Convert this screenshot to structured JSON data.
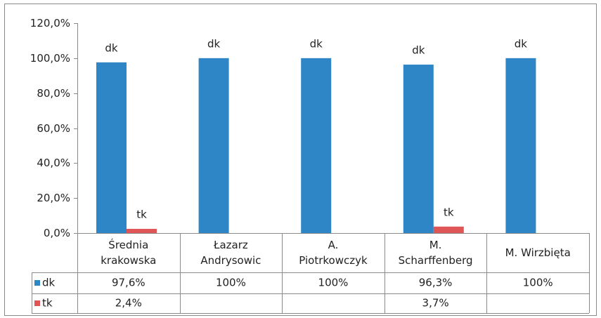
{
  "chart_data": {
    "type": "bar",
    "categories": [
      "Średnia\nkrakowska",
      "Łazarz\nAndrysowic",
      "A.\nPiotrkowczyk",
      "M.\nScharffenberg",
      "M. Wirzbięta"
    ],
    "series": [
      {
        "name": "dk",
        "color": "#2f86c6",
        "values": [
          97.6,
          100,
          100,
          96.3,
          100
        ],
        "value_labels": [
          "97,6%",
          "100%",
          "100%",
          "96,3%",
          "100%"
        ]
      },
      {
        "name": "tk",
        "color": "#e05556",
        "values": [
          2.4,
          null,
          null,
          3.7,
          null
        ],
        "value_labels": [
          "2,4%",
          null,
          null,
          "3,7%",
          null
        ]
      }
    ],
    "ylim": [
      0,
      120
    ],
    "yticks": [
      {
        "value": 0,
        "label": "0,0%"
      },
      {
        "value": 20,
        "label": "20,0%"
      },
      {
        "value": 40,
        "label": "40,0%"
      },
      {
        "value": 60,
        "label": "60,0%"
      },
      {
        "value": 80,
        "label": "80,0%"
      },
      {
        "value": 100,
        "label": "100,0%"
      },
      {
        "value": 120,
        "label": "120,0%"
      }
    ],
    "grid": false,
    "data_table": true
  }
}
